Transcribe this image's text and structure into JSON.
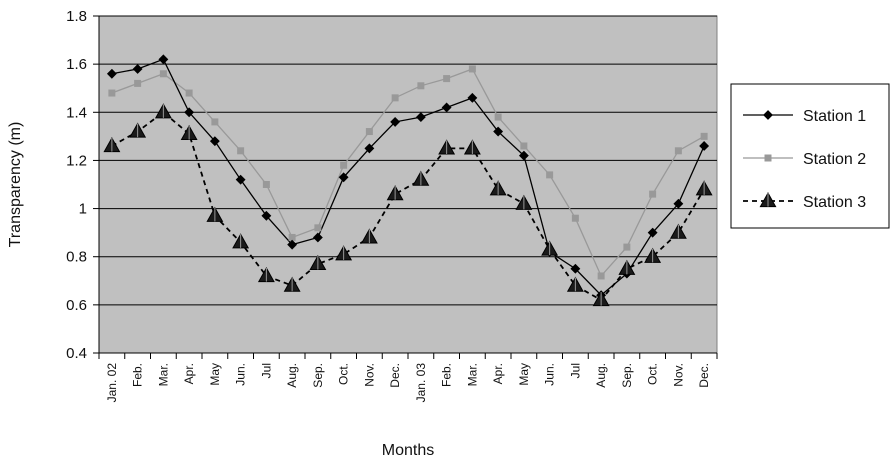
{
  "chart_data": {
    "type": "line",
    "xlabel": "Months",
    "ylabel": "Transparency (m)",
    "ylim": [
      0.4,
      1.8
    ],
    "yticks": [
      0.4,
      0.6,
      0.8,
      1,
      1.2,
      1.4,
      1.6,
      1.8
    ],
    "ytick_labels": [
      "0.4",
      "0.6",
      "0.8",
      "1",
      "1.2",
      "1.4",
      "1.6",
      "1.8"
    ],
    "grid": true,
    "legend_position": "right",
    "plot_background": "#c0c0c0",
    "categories": [
      "Jan. 02",
      "Feb.",
      "Mar.",
      "Apr.",
      "May",
      "Jun.",
      "Jul",
      "Aug.",
      "Sep.",
      "Oct.",
      "Nov.",
      "Dec.",
      "Jan. 03",
      "Feb.",
      "Mar.",
      "Apr.",
      "May",
      "Jun.",
      "Jul",
      "Aug.",
      "Sep.",
      "Oct.",
      "Nov.",
      "Dec."
    ],
    "series": [
      {
        "name": "Station 1",
        "color": "#000000",
        "marker": "diamond",
        "line": "solid",
        "values": [
          1.56,
          1.58,
          1.62,
          1.4,
          1.28,
          1.12,
          0.97,
          0.85,
          0.88,
          1.13,
          1.25,
          1.36,
          1.38,
          1.42,
          1.46,
          1.32,
          1.22,
          0.82,
          0.75,
          0.64,
          0.73,
          0.9,
          1.02,
          1.26
        ]
      },
      {
        "name": "Station 2",
        "color": "#999999",
        "marker": "square",
        "line": "solid",
        "values": [
          1.48,
          1.52,
          1.56,
          1.48,
          1.36,
          1.24,
          1.1,
          0.88,
          0.92,
          1.18,
          1.32,
          1.46,
          1.51,
          1.54,
          1.58,
          1.38,
          1.26,
          1.14,
          0.96,
          0.72,
          0.84,
          1.06,
          1.24,
          1.3
        ]
      },
      {
        "name": "Station 3",
        "color": "#000000",
        "marker": "triangle",
        "line": "dashed",
        "values": [
          1.26,
          1.32,
          1.4,
          1.31,
          0.97,
          0.86,
          0.72,
          0.68,
          0.77,
          0.81,
          0.88,
          1.06,
          1.12,
          1.25,
          1.25,
          1.08,
          1.02,
          0.83,
          0.68,
          0.62,
          0.75,
          0.8,
          0.9,
          1.08
        ]
      }
    ]
  }
}
